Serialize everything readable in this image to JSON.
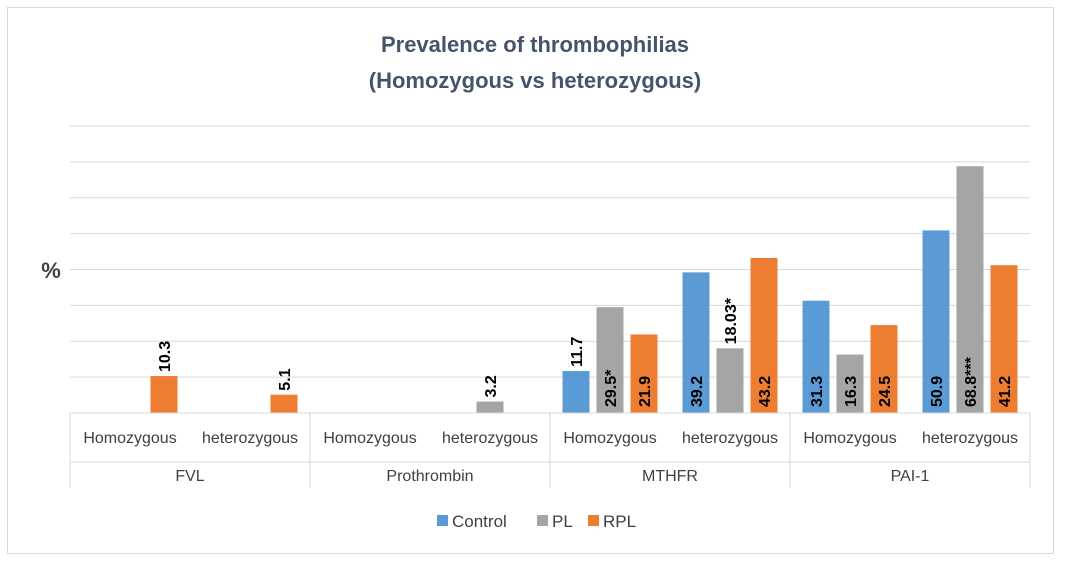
{
  "chart_data": {
    "type": "bar",
    "title": "Prevalence of thrombophilias",
    "subtitle": "(Homozygous vs heterozygous)",
    "ylabel": "%",
    "xlabel": "",
    "ylim": [
      0,
      80
    ],
    "grid": true,
    "legend_position": "bottom",
    "groups": [
      "FVL",
      "Prothrombin",
      "MTHFR",
      "PAI-1"
    ],
    "categories": [
      "Homozygous",
      "heterozygous",
      "Homozygous",
      "heterozygous",
      "Homozygous",
      "heterozygous",
      "Homozygous",
      "heterozygous"
    ],
    "series": [
      {
        "name": "Control",
        "color": "#5b9bd5",
        "values": [
          null,
          null,
          null,
          null,
          11.7,
          39.2,
          31.3,
          50.9
        ],
        "labels": [
          "",
          "",
          "",
          "",
          "11.7",
          "39.2",
          "31.3",
          "50.9"
        ]
      },
      {
        "name": "PL",
        "color": "#a5a5a5",
        "values": [
          null,
          null,
          null,
          3.2,
          29.5,
          18.03,
          16.3,
          68.8
        ],
        "labels": [
          "",
          "",
          "",
          "3.2",
          "29.5*",
          "18.03*",
          "16.3",
          "68.8***"
        ]
      },
      {
        "name": "RPL",
        "color": "#ed7d31",
        "values": [
          10.3,
          5.1,
          null,
          null,
          21.9,
          43.2,
          24.5,
          41.2
        ],
        "labels": [
          "10.3",
          "5.1",
          "",
          "",
          "21.9",
          "43.2",
          "24.5",
          "41.2"
        ]
      }
    ]
  }
}
